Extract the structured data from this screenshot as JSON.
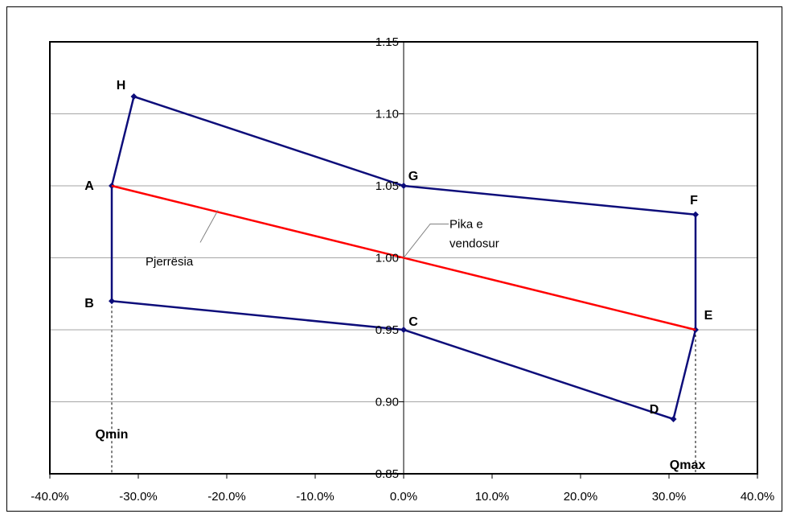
{
  "chart_data": {
    "type": "line",
    "x_ticks": [
      "-40.0%",
      "-30.0%",
      "-20.0%",
      "-10.0%",
      "0.0%",
      "10.0%",
      "20.0%",
      "30.0%",
      "40.0%"
    ],
    "y_ticks": [
      "0.85",
      "0.90",
      "0.95",
      "1.00",
      "1.05",
      "1.10",
      "1.15"
    ],
    "xlim": [
      -40,
      40
    ],
    "ylim": [
      0.85,
      1.15
    ],
    "x_unit": "%",
    "grid": "horizontal",
    "series": [
      {
        "color": "#0d0d7a",
        "points": [
          {
            "label": "A",
            "x": -33.0,
            "y": 1.05
          },
          {
            "label": "B",
            "x": -33.0,
            "y": 0.97
          },
          {
            "label": "C",
            "x": 0.0,
            "y": 0.95
          },
          {
            "label": "D",
            "x": 30.5,
            "y": 0.888
          },
          {
            "label": "E",
            "x": 33.0,
            "y": 0.95
          },
          {
            "label": "F",
            "x": 33.0,
            "y": 1.03
          },
          {
            "label": "G",
            "x": 0.0,
            "y": 1.05
          },
          {
            "label": "H",
            "x": -30.5,
            "y": 1.112
          },
          {
            "label": "",
            "x": -33.0,
            "y": 1.05
          }
        ]
      },
      {
        "color": "#ff0000",
        "points": [
          {
            "x": -33.0,
            "y": 1.05
          },
          {
            "x": 33.0,
            "y": 0.95
          }
        ]
      }
    ],
    "reference_lines": [
      {
        "label": "Qmin",
        "x": -33.0
      },
      {
        "label": "Qmax",
        "x": 33.0
      }
    ],
    "annotations": [
      {
        "text": "Pjerrësia",
        "target_x": -21.0,
        "target_y": 1.033
      },
      {
        "text": "Pika e vendosur",
        "target_x": 0.0,
        "target_y": 1.0
      }
    ]
  }
}
